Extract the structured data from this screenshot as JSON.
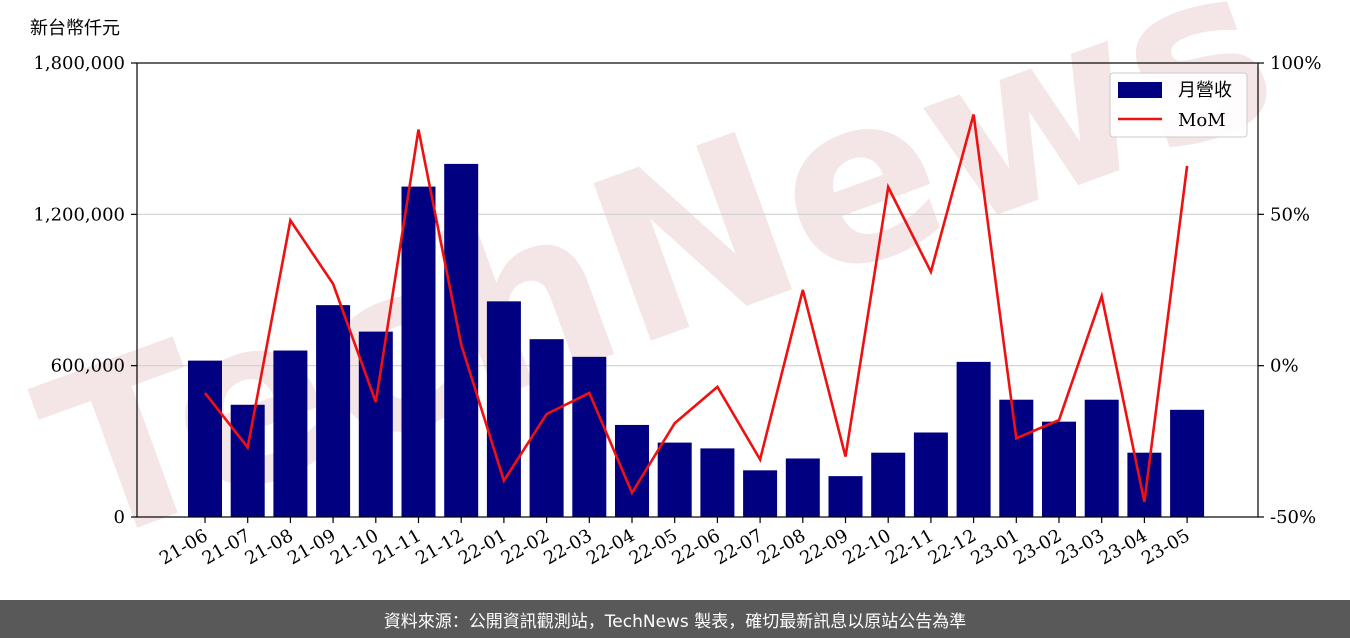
{
  "unit_label": "新台幣仟元",
  "footer": "資料來源：公開資訊觀測站，TechNews 製表，確切最新訊息以原站公告為準",
  "watermark": "TechNews",
  "colors": {
    "bar": "#000080",
    "line": "#ee1111",
    "footer_bg": "#595959",
    "grid": "#d0d0d0"
  },
  "chart_data": {
    "type": "bar",
    "categories": [
      "21-06",
      "21-07",
      "21-08",
      "21-09",
      "21-10",
      "21-11",
      "21-12",
      "22-01",
      "22-02",
      "22-03",
      "22-04",
      "22-05",
      "22-06",
      "22-07",
      "22-08",
      "22-09",
      "22-10",
      "22-11",
      "22-12",
      "23-01",
      "23-02",
      "23-03",
      "23-04",
      "23-05"
    ],
    "series": [
      {
        "name": "月營收",
        "type": "bar",
        "axis": "left",
        "values": [
          620000,
          445000,
          660000,
          840000,
          735000,
          1310000,
          1400000,
          855000,
          705000,
          635000,
          365000,
          295000,
          272000,
          185000,
          232000,
          162000,
          255000,
          335000,
          615000,
          465000,
          378000,
          465000,
          255000,
          425000
        ]
      },
      {
        "name": "MoM",
        "type": "line",
        "axis": "right",
        "values": [
          -9,
          -27,
          48,
          27,
          -12,
          78,
          7,
          -38,
          -16,
          -9,
          -42,
          -19,
          -7,
          -31,
          25,
          -30,
          59,
          31,
          83,
          -24,
          -18,
          23,
          -45,
          66
        ]
      }
    ],
    "y_left": {
      "lim": [
        0,
        1800000
      ],
      "ticks": [
        0,
        600000,
        1200000,
        1800000
      ],
      "tick_labels": [
        "0",
        "600,000",
        "1,200,000",
        "1,800,000"
      ]
    },
    "y_right": {
      "lim": [
        -50,
        100
      ],
      "ticks": [
        -50,
        0,
        50,
        100
      ],
      "tick_labels": [
        "-50%",
        "0%",
        "50%",
        "100%"
      ]
    },
    "grid": "horizontal",
    "legend": "top-right"
  }
}
